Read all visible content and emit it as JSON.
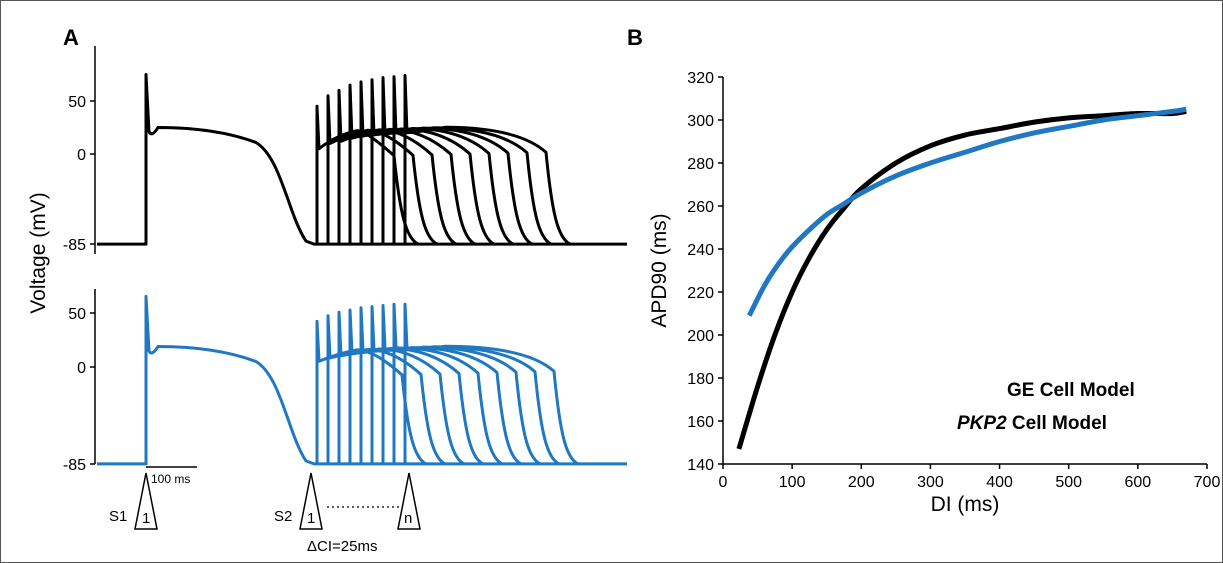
{
  "panel_a": {
    "label": "A",
    "ylabel": "Voltage (mV)",
    "top_ticks": [
      "50",
      "0",
      "-85"
    ],
    "bottom_ticks": [
      "50",
      "0",
      "-85"
    ],
    "scale_bar": "100 ms",
    "s1_label": "S1",
    "s1_num": "1",
    "s2_label": "S2",
    "s2_num_first": "1",
    "s2_num_last": "n",
    "delta_ci": "ΔCI=25ms"
  },
  "panel_b": {
    "label": "B",
    "legend": {
      "ge_label": "GE Cell Model",
      "pkp2_italic": "PKP2",
      "pkp2_rest": " Cell Model"
    }
  },
  "colors": {
    "ge": "#000000",
    "pkp2": "#1f78c1"
  },
  "chart_data": [
    {
      "type": "line",
      "panel": "A",
      "ylabel": "Voltage (mV)",
      "ylim": [
        -85,
        60
      ],
      "ytick_labels": [
        "50",
        "0",
        "-85"
      ],
      "traces": [
        {
          "series": "GE Cell Model",
          "color": "#000000",
          "resting_mv": -85,
          "s1_peak_mv": 75,
          "s1_plateau_mv": 25,
          "s2_peak_mv": [
            45,
            55,
            60,
            65,
            68,
            70,
            72,
            73,
            74
          ],
          "s2_notch_mv": [
            5,
            10,
            12,
            15,
            17,
            18,
            19,
            20,
            20
          ]
        },
        {
          "series": "PKP2 Cell Model",
          "color": "#1f78c1",
          "resting_mv": -85,
          "s1_peak_mv": 62,
          "s1_plateau_mv": 18,
          "s2_peak_mv": [
            40,
            45,
            48,
            50,
            52,
            53,
            54,
            55,
            55
          ],
          "s2_notch_mv": [
            5,
            8,
            10,
            12,
            14,
            15,
            16,
            17,
            17
          ]
        }
      ]
    },
    {
      "type": "line",
      "panel": "B",
      "xlabel": "DI (ms)",
      "ylabel": "APD90 (ms)",
      "xlim": [
        0,
        700
      ],
      "ylim": [
        140,
        320
      ],
      "xticks": [
        0,
        100,
        200,
        300,
        400,
        500,
        600,
        700
      ],
      "yticks": [
        140,
        160,
        180,
        200,
        220,
        240,
        260,
        280,
        300,
        320
      ],
      "series": [
        {
          "name": "GE Cell Model",
          "color": "#000000",
          "x": [
            23,
            50,
            75,
            100,
            125,
            150,
            175,
            200,
            250,
            300,
            350,
            400,
            450,
            500,
            550,
            600,
            650,
            670
          ],
          "y": [
            147,
            176,
            200,
            220,
            236,
            249,
            259,
            268,
            280,
            288,
            293,
            296,
            299,
            301,
            302,
            303,
            303,
            304
          ]
        },
        {
          "name": "PKP2 Cell Model",
          "color": "#1f78c1",
          "x": [
            38,
            60,
            80,
            100,
            125,
            150,
            175,
            200,
            250,
            300,
            350,
            400,
            450,
            500,
            550,
            600,
            650,
            670
          ],
          "y": [
            209,
            223,
            233,
            241,
            249,
            256,
            261,
            266,
            274,
            280,
            285,
            290,
            294,
            297,
            300,
            302,
            304,
            305
          ]
        }
      ]
    }
  ]
}
